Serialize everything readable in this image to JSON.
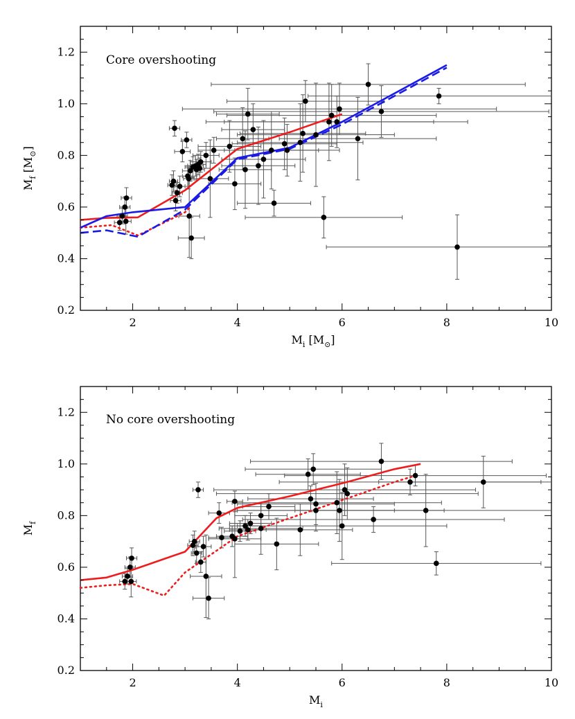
{
  "figure": {
    "colors": {
      "model_red": "#ee1c1c",
      "model_blue": "#1a1ae6",
      "points": "#000000",
      "error_bars": "#555555"
    }
  },
  "chart_data": [
    {
      "type": "scatter",
      "annotation": "Core overshooting",
      "xlabel": "M_i [M_⊙]",
      "ylabel": "M_f [M_⊙]",
      "label_parts": {
        "x_main": "M",
        "x_sub": "i",
        "x_unit": "[M",
        "x_unit_sub": "⊙",
        "x_close": "]",
        "y_main": "M",
        "y_sub": "f",
        "y_unit": "[M",
        "y_unit_sub": "⊙",
        "y_close": "]"
      },
      "xlim": [
        1,
        10
      ],
      "ylim": [
        0.2,
        1.3
      ],
      "x_ticks": [
        2,
        4,
        6,
        8,
        10
      ],
      "y_ticks": [
        0.2,
        0.4,
        0.6,
        0.8,
        1.0,
        1.2
      ],
      "points": [
        {
          "x": 1.75,
          "y": 0.54,
          "xerr": 0.1,
          "yerr": 0.03
        },
        {
          "x": 1.8,
          "y": 0.565,
          "xerr": 0.1,
          "yerr": 0.03
        },
        {
          "x": 1.85,
          "y": 0.6,
          "xerr": 0.1,
          "yerr": 0.04
        },
        {
          "x": 1.88,
          "y": 0.635,
          "xerr": 0.1,
          "yerr": 0.04
        },
        {
          "x": 1.87,
          "y": 0.545,
          "xerr": 0.1,
          "yerr": 0.05
        },
        {
          "x": 2.8,
          "y": 0.905,
          "xerr": 0.1,
          "yerr": 0.03
        },
        {
          "x": 2.75,
          "y": 0.685,
          "xerr": 0.08,
          "yerr": 0.04
        },
        {
          "x": 2.78,
          "y": 0.7,
          "xerr": 0.08,
          "yerr": 0.04
        },
        {
          "x": 2.85,
          "y": 0.655,
          "xerr": 0.1,
          "yerr": 0.04
        },
        {
          "x": 2.82,
          "y": 0.625,
          "xerr": 0.1,
          "yerr": 0.04
        },
        {
          "x": 2.9,
          "y": 0.68,
          "xerr": 0.1,
          "yerr": 0.04
        },
        {
          "x": 2.95,
          "y": 0.815,
          "xerr": 0.15,
          "yerr": 0.04
        },
        {
          "x": 3.03,
          "y": 0.86,
          "xerr": 0.1,
          "yerr": 0.03
        },
        {
          "x": 3.05,
          "y": 0.72,
          "xerr": 0.1,
          "yerr": 0.04
        },
        {
          "x": 3.07,
          "y": 0.71,
          "xerr": 0.1,
          "yerr": 0.04
        },
        {
          "x": 3.1,
          "y": 0.74,
          "xerr": 0.15,
          "yerr": 0.04
        },
        {
          "x": 3.15,
          "y": 0.755,
          "xerr": 0.15,
          "yerr": 0.04
        },
        {
          "x": 3.2,
          "y": 0.76,
          "xerr": 0.15,
          "yerr": 0.04
        },
        {
          "x": 3.22,
          "y": 0.745,
          "xerr": 0.15,
          "yerr": 0.04
        },
        {
          "x": 3.25,
          "y": 0.765,
          "xerr": 0.15,
          "yerr": 0.04
        },
        {
          "x": 3.28,
          "y": 0.75,
          "xerr": 0.2,
          "yerr": 0.04
        },
        {
          "x": 3.3,
          "y": 0.775,
          "xerr": 0.2,
          "yerr": 0.04
        },
        {
          "x": 3.4,
          "y": 0.8,
          "xerr": 0.25,
          "yerr": 0.05
        },
        {
          "x": 3.55,
          "y": 0.82,
          "xerr": 0.3,
          "yerr": 0.05
        },
        {
          "x": 3.08,
          "y": 0.565,
          "xerr": 0.2,
          "yerr": 0.16
        },
        {
          "x": 3.12,
          "y": 0.48,
          "xerr": 0.25,
          "yerr": 0.08
        },
        {
          "x": 3.48,
          "y": 0.71,
          "xerr": 0.35,
          "yerr": 0.15
        },
        {
          "x": 3.85,
          "y": 0.835,
          "xerr": 0.6,
          "yerr": 0.1
        },
        {
          "x": 3.95,
          "y": 0.69,
          "xerr": 0.5,
          "yerr": 0.1
        },
        {
          "x": 4.1,
          "y": 0.865,
          "xerr": 0.5,
          "yerr": 0.12
        },
        {
          "x": 4.15,
          "y": 0.745,
          "xerr": 0.5,
          "yerr": 0.15
        },
        {
          "x": 4.2,
          "y": 0.96,
          "xerr": 0.6,
          "yerr": 0.1
        },
        {
          "x": 4.3,
          "y": 0.9,
          "xerr": 0.6,
          "yerr": 0.1
        },
        {
          "x": 4.4,
          "y": 0.76,
          "xerr": 0.7,
          "yerr": 0.15
        },
        {
          "x": 4.5,
          "y": 0.785,
          "xerr": 0.8,
          "yerr": 0.15
        },
        {
          "x": 4.65,
          "y": 0.82,
          "xerr": 0.9,
          "yerr": 0.15
        },
        {
          "x": 4.7,
          "y": 0.615,
          "xerr": 0.7,
          "yerr": 0.05
        },
        {
          "x": 4.9,
          "y": 0.845,
          "xerr": 1.0,
          "yerr": 0.1
        },
        {
          "x": 4.95,
          "y": 0.82,
          "xerr": 1.0,
          "yerr": 0.1
        },
        {
          "x": 5.2,
          "y": 0.85,
          "xerr": 1.2,
          "yerr": 0.15
        },
        {
          "x": 5.25,
          "y": 0.885,
          "xerr": 1.2,
          "yerr": 0.15
        },
        {
          "x": 5.3,
          "y": 1.01,
          "xerr": 1.5,
          "yerr": 0.08
        },
        {
          "x": 5.5,
          "y": 0.88,
          "xerr": 1.5,
          "yerr": 0.2
        },
        {
          "x": 5.65,
          "y": 0.56,
          "xerr": 1.5,
          "yerr": 0.08
        },
        {
          "x": 5.75,
          "y": 0.93,
          "xerr": 2.0,
          "yerr": 0.15
        },
        {
          "x": 5.8,
          "y": 0.955,
          "xerr": 2.0,
          "yerr": 0.12
        },
        {
          "x": 5.9,
          "y": 0.93,
          "xerr": 2.5,
          "yerr": 0.1
        },
        {
          "x": 5.95,
          "y": 0.98,
          "xerr": 3.0,
          "yerr": 0.1
        },
        {
          "x": 6.3,
          "y": 0.865,
          "xerr": 1.5,
          "yerr": 0.16
        },
        {
          "x": 6.5,
          "y": 1.075,
          "xerr": 3.0,
          "yerr": 0.08
        },
        {
          "x": 6.75,
          "y": 0.97,
          "xerr": 3.2,
          "yerr": 0.1
        },
        {
          "x": 7.85,
          "y": 1.03,
          "xerr": 2.5,
          "yerr": 0.03
        },
        {
          "x": 8.2,
          "y": 0.445,
          "xerr": 2.5,
          "yerr": 0.125
        }
      ],
      "series": [
        {
          "color": "#ee1c1c",
          "dash": "solid",
          "x": [
            1,
            1.5,
            2.1,
            3,
            4,
            5,
            6
          ],
          "y": [
            0.55,
            0.558,
            0.56,
            0.665,
            0.825,
            0.89,
            0.96
          ]
        },
        {
          "color": "#ee1c1c",
          "dash": "dotted",
          "x": [
            1,
            1.6,
            2.1,
            3,
            3.1
          ],
          "y": [
            0.52,
            0.53,
            0.49,
            0.58,
            0.6
          ]
        },
        {
          "color": "#1a1ae6",
          "dash": "solid",
          "x": [
            1,
            1.5,
            2,
            3,
            4,
            5,
            6,
            8
          ],
          "y": [
            0.52,
            0.565,
            0.58,
            0.6,
            0.79,
            0.83,
            0.93,
            1.15
          ]
        },
        {
          "color": "#1a1ae6",
          "dash": "dashed",
          "x": [
            1,
            1.5,
            2.1,
            3,
            4,
            5,
            6,
            8
          ],
          "y": [
            0.5,
            0.51,
            0.485,
            0.59,
            0.785,
            0.825,
            0.92,
            1.14
          ]
        }
      ]
    },
    {
      "type": "scatter",
      "annotation": "No core overshooting",
      "xlabel": "M_i",
      "ylabel": "M_f",
      "label_parts": {
        "x_main": "M",
        "x_sub": "i",
        "y_main": "M",
        "y_sub": "f"
      },
      "xlim": [
        1,
        10
      ],
      "ylim": [
        0.2,
        1.3
      ],
      "x_ticks": [
        2,
        4,
        6,
        8,
        10
      ],
      "y_ticks": [
        0.2,
        0.4,
        0.6,
        0.8,
        1.0,
        1.2
      ],
      "points": [
        {
          "x": 1.85,
          "y": 0.545,
          "xerr": 0.1,
          "yerr": 0.03
        },
        {
          "x": 1.9,
          "y": 0.565,
          "xerr": 0.1,
          "yerr": 0.03
        },
        {
          "x": 1.95,
          "y": 0.6,
          "xerr": 0.1,
          "yerr": 0.04
        },
        {
          "x": 1.98,
          "y": 0.635,
          "xerr": 0.1,
          "yerr": 0.04
        },
        {
          "x": 1.97,
          "y": 0.545,
          "xerr": 0.1,
          "yerr": 0.06
        },
        {
          "x": 3.25,
          "y": 0.9,
          "xerr": 0.1,
          "yerr": 0.03
        },
        {
          "x": 3.15,
          "y": 0.685,
          "xerr": 0.1,
          "yerr": 0.04
        },
        {
          "x": 3.18,
          "y": 0.7,
          "xerr": 0.1,
          "yerr": 0.04
        },
        {
          "x": 3.22,
          "y": 0.655,
          "xerr": 0.1,
          "yerr": 0.04
        },
        {
          "x": 3.3,
          "y": 0.62,
          "xerr": 0.1,
          "yerr": 0.04
        },
        {
          "x": 3.35,
          "y": 0.68,
          "xerr": 0.15,
          "yerr": 0.04
        },
        {
          "x": 3.65,
          "y": 0.81,
          "xerr": 0.2,
          "yerr": 0.04
        },
        {
          "x": 3.95,
          "y": 0.855,
          "xerr": 0.15,
          "yerr": 0.04
        },
        {
          "x": 3.7,
          "y": 0.715,
          "xerr": 0.25,
          "yerr": 0.04
        },
        {
          "x": 3.9,
          "y": 0.72,
          "xerr": 0.3,
          "yerr": 0.04
        },
        {
          "x": 4.05,
          "y": 0.74,
          "xerr": 0.3,
          "yerr": 0.04
        },
        {
          "x": 4.15,
          "y": 0.76,
          "xerr": 0.3,
          "yerr": 0.04
        },
        {
          "x": 4.2,
          "y": 0.745,
          "xerr": 0.35,
          "yerr": 0.04
        },
        {
          "x": 4.25,
          "y": 0.77,
          "xerr": 0.4,
          "yerr": 0.04
        },
        {
          "x": 4.45,
          "y": 0.8,
          "xerr": 0.5,
          "yerr": 0.05
        },
        {
          "x": 4.6,
          "y": 0.835,
          "xerr": 0.5,
          "yerr": 0.05
        },
        {
          "x": 3.4,
          "y": 0.565,
          "xerr": 0.3,
          "yerr": 0.16
        },
        {
          "x": 3.45,
          "y": 0.48,
          "xerr": 0.3,
          "yerr": 0.08
        },
        {
          "x": 3.95,
          "y": 0.71,
          "xerr": 0.5,
          "yerr": 0.15
        },
        {
          "x": 4.45,
          "y": 0.75,
          "xerr": 0.8,
          "yerr": 0.1
        },
        {
          "x": 4.75,
          "y": 0.69,
          "xerr": 0.8,
          "yerr": 0.1
        },
        {
          "x": 5.2,
          "y": 0.745,
          "xerr": 1.0,
          "yerr": 0.1
        },
        {
          "x": 5.35,
          "y": 0.96,
          "xerr": 1.0,
          "yerr": 0.06
        },
        {
          "x": 5.4,
          "y": 0.865,
          "xerr": 1.2,
          "yerr": 0.05
        },
        {
          "x": 5.45,
          "y": 0.98,
          "xerr": 1.3,
          "yerr": 0.06
        },
        {
          "x": 5.5,
          "y": 0.845,
          "xerr": 1.5,
          "yerr": 0.08
        },
        {
          "x": 5.5,
          "y": 0.82,
          "xerr": 1.5,
          "yerr": 0.08
        },
        {
          "x": 5.9,
          "y": 0.85,
          "xerr": 2.0,
          "yerr": 0.12
        },
        {
          "x": 5.95,
          "y": 0.82,
          "xerr": 2.0,
          "yerr": 0.12
        },
        {
          "x": 6.0,
          "y": 0.76,
          "xerr": 2.0,
          "yerr": 0.13
        },
        {
          "x": 6.05,
          "y": 0.9,
          "xerr": 2.5,
          "yerr": 0.1
        },
        {
          "x": 6.1,
          "y": 0.885,
          "xerr": 2.5,
          "yerr": 0.1
        },
        {
          "x": 6.6,
          "y": 0.785,
          "xerr": 2.5,
          "yerr": 0.05
        },
        {
          "x": 6.75,
          "y": 1.01,
          "xerr": 2.5,
          "yerr": 0.07
        },
        {
          "x": 7.3,
          "y": 0.93,
          "xerr": 2.5,
          "yerr": 0.05
        },
        {
          "x": 7.4,
          "y": 0.955,
          "xerr": 2.5,
          "yerr": 0.04
        },
        {
          "x": 7.6,
          "y": 0.82,
          "xerr": 2.5,
          "yerr": 0.14
        },
        {
          "x": 7.8,
          "y": 0.615,
          "xerr": 2.0,
          "yerr": 0.045
        },
        {
          "x": 8.7,
          "y": 0.93,
          "xerr": 2.0,
          "yerr": 0.1
        }
      ],
      "series": [
        {
          "color": "#ee1c1c",
          "dash": "solid",
          "x": [
            1,
            1.5,
            2,
            3,
            3.6,
            4,
            5,
            6,
            7,
            7.5
          ],
          "y": [
            0.55,
            0.56,
            0.59,
            0.66,
            0.79,
            0.83,
            0.875,
            0.925,
            0.98,
            1.0
          ]
        },
        {
          "color": "#ee1c1c",
          "dash": "dotted",
          "x": [
            1,
            1.5,
            2,
            2.6,
            3,
            4,
            5,
            6,
            7,
            7.4
          ],
          "y": [
            0.52,
            0.53,
            0.535,
            0.49,
            0.58,
            0.72,
            0.79,
            0.86,
            0.93,
            0.955
          ]
        }
      ]
    }
  ]
}
